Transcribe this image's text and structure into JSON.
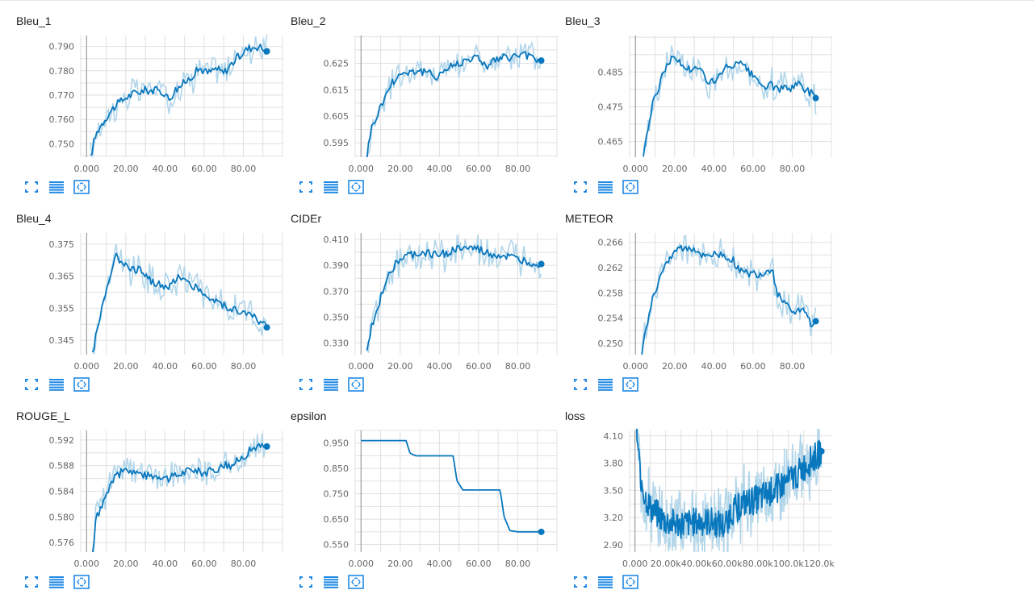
{
  "colors": {
    "line": "#0877bd",
    "line_raw": "#b3d6ea",
    "grid": "#e0e0e0",
    "axis": "#9e9e9e",
    "icon": "#1f88e5"
  },
  "icons": [
    "fullscreen-icon",
    "data-table-icon",
    "fit-domain-icon"
  ],
  "chart_data": [
    {
      "type": "line",
      "title": "Bleu_1",
      "x_tick_labels": [
        "0.000",
        "20.00",
        "40.00",
        "60.00",
        "80.00"
      ],
      "y_tick_labels": [
        "0.790",
        "0.780",
        "0.770",
        "0.760",
        "0.750"
      ],
      "xlim": [
        -3,
        100
      ],
      "ylim": [
        0.7445,
        0.7945
      ],
      "y_ticks": [
        0.79,
        0.78,
        0.77,
        0.76,
        0.75
      ],
      "x_ticks": [
        0,
        20,
        40,
        60,
        80
      ],
      "end_x": 92,
      "end_y": 0.788,
      "anchors": [
        [
          2,
          0.744
        ],
        [
          4,
          0.752
        ],
        [
          6,
          0.756
        ],
        [
          10,
          0.761
        ],
        [
          14,
          0.765
        ],
        [
          20,
          0.769
        ],
        [
          25,
          0.771
        ],
        [
          30,
          0.772
        ],
        [
          35,
          0.772
        ],
        [
          40,
          0.771
        ],
        [
          42,
          0.768
        ],
        [
          45,
          0.772
        ],
        [
          50,
          0.775
        ],
        [
          55,
          0.779
        ],
        [
          58,
          0.781
        ],
        [
          62,
          0.779
        ],
        [
          66,
          0.781
        ],
        [
          70,
          0.779
        ],
        [
          74,
          0.783
        ],
        [
          78,
          0.786
        ],
        [
          82,
          0.789
        ],
        [
          86,
          0.79
        ],
        [
          88,
          0.79
        ],
        [
          92,
          0.788
        ]
      ]
    },
    {
      "type": "line",
      "title": "Bleu_2",
      "x_tick_labels": [
        "0.000",
        "20.00",
        "40.00",
        "60.00",
        "80.00"
      ],
      "y_tick_labels": [
        "0.625",
        "0.615",
        "0.605",
        "0.595"
      ],
      "xlim": [
        -3,
        100
      ],
      "ylim": [
        0.5895,
        0.6355
      ],
      "y_ticks": [
        0.625,
        0.615,
        0.605,
        0.595
      ],
      "x_ticks": [
        0,
        20,
        40,
        60,
        80
      ],
      "end_x": 92,
      "end_y": 0.626,
      "anchors": [
        [
          3,
          0.59
        ],
        [
          5,
          0.6
        ],
        [
          8,
          0.605
        ],
        [
          12,
          0.612
        ],
        [
          16,
          0.618
        ],
        [
          20,
          0.621
        ],
        [
          25,
          0.622
        ],
        [
          30,
          0.622
        ],
        [
          35,
          0.621
        ],
        [
          38,
          0.62
        ],
        [
          42,
          0.622
        ],
        [
          46,
          0.624
        ],
        [
          50,
          0.625
        ],
        [
          55,
          0.627
        ],
        [
          60,
          0.627
        ],
        [
          64,
          0.624
        ],
        [
          68,
          0.626
        ],
        [
          72,
          0.627
        ],
        [
          76,
          0.627
        ],
        [
          80,
          0.628
        ],
        [
          84,
          0.628
        ],
        [
          88,
          0.627
        ],
        [
          92,
          0.626
        ]
      ]
    },
    {
      "type": "line",
      "title": "Bleu_3",
      "x_tick_labels": [
        "0.000",
        "20.00",
        "40.00",
        "60.00",
        "80.00"
      ],
      "y_tick_labels": [
        "0.485",
        "0.475",
        "0.465"
      ],
      "xlim": [
        -3,
        100
      ],
      "ylim": [
        0.4605,
        0.4955
      ],
      "y_ticks": [
        0.485,
        0.475,
        0.465
      ],
      "x_ticks": [
        0,
        20,
        40,
        60,
        80
      ],
      "end_x": 92,
      "end_y": 0.4775,
      "anchors": [
        [
          4,
          0.461
        ],
        [
          6,
          0.468
        ],
        [
          9,
          0.476
        ],
        [
          12,
          0.481
        ],
        [
          15,
          0.486
        ],
        [
          18,
          0.489
        ],
        [
          22,
          0.488
        ],
        [
          26,
          0.486
        ],
        [
          30,
          0.486
        ],
        [
          34,
          0.485
        ],
        [
          38,
          0.482
        ],
        [
          42,
          0.483
        ],
        [
          46,
          0.486
        ],
        [
          50,
          0.487
        ],
        [
          54,
          0.487
        ],
        [
          58,
          0.485
        ],
        [
          62,
          0.482
        ],
        [
          66,
          0.481
        ],
        [
          70,
          0.481
        ],
        [
          74,
          0.48
        ],
        [
          78,
          0.48
        ],
        [
          82,
          0.482
        ],
        [
          86,
          0.48
        ],
        [
          90,
          0.479
        ],
        [
          92,
          0.4775
        ]
      ]
    },
    {
      "type": "line",
      "title": "Bleu_4",
      "x_tick_labels": [
        "0.000",
        "20.00",
        "40.00",
        "60.00",
        "80.00"
      ],
      "y_tick_labels": [
        "0.375",
        "0.365",
        "0.355",
        "0.345"
      ],
      "xlim": [
        -3,
        100
      ],
      "ylim": [
        0.3405,
        0.3785
      ],
      "y_ticks": [
        0.375,
        0.365,
        0.355,
        0.345
      ],
      "x_ticks": [
        0,
        20,
        40,
        60,
        80
      ],
      "end_x": 92,
      "end_y": 0.349,
      "anchors": [
        [
          3,
          0.341
        ],
        [
          6,
          0.35
        ],
        [
          9,
          0.358
        ],
        [
          12,
          0.366
        ],
        [
          15,
          0.371
        ],
        [
          18,
          0.37
        ],
        [
          22,
          0.368
        ],
        [
          26,
          0.367
        ],
        [
          30,
          0.366
        ],
        [
          34,
          0.363
        ],
        [
          38,
          0.362
        ],
        [
          42,
          0.361
        ],
        [
          46,
          0.365
        ],
        [
          50,
          0.364
        ],
        [
          54,
          0.362
        ],
        [
          58,
          0.361
        ],
        [
          62,
          0.358
        ],
        [
          66,
          0.357
        ],
        [
          70,
          0.356
        ],
        [
          74,
          0.355
        ],
        [
          78,
          0.354
        ],
        [
          82,
          0.353
        ],
        [
          86,
          0.352
        ],
        [
          90,
          0.35
        ],
        [
          92,
          0.349
        ]
      ]
    },
    {
      "type": "line",
      "title": "CIDEr",
      "x_tick_labels": [
        "0.000",
        "20.00",
        "40.00",
        "60.00",
        "80.00"
      ],
      "y_tick_labels": [
        "0.410",
        "0.390",
        "0.370",
        "0.350",
        "0.330"
      ],
      "xlim": [
        -3,
        100
      ],
      "ylim": [
        0.321,
        0.415
      ],
      "y_ticks": [
        0.41,
        0.39,
        0.37,
        0.35,
        0.33
      ],
      "x_ticks": [
        0,
        20,
        40,
        60,
        80
      ],
      "end_x": 92,
      "end_y": 0.391,
      "anchors": [
        [
          3,
          0.322
        ],
        [
          5,
          0.34
        ],
        [
          8,
          0.355
        ],
        [
          11,
          0.37
        ],
        [
          14,
          0.384
        ],
        [
          18,
          0.392
        ],
        [
          22,
          0.396
        ],
        [
          26,
          0.398
        ],
        [
          30,
          0.399
        ],
        [
          35,
          0.399
        ],
        [
          40,
          0.398
        ],
        [
          45,
          0.4
        ],
        [
          50,
          0.403
        ],
        [
          55,
          0.403
        ],
        [
          60,
          0.402
        ],
        [
          64,
          0.399
        ],
        [
          68,
          0.398
        ],
        [
          72,
          0.397
        ],
        [
          76,
          0.396
        ],
        [
          80,
          0.394
        ],
        [
          84,
          0.393
        ],
        [
          88,
          0.392
        ],
        [
          92,
          0.391
        ]
      ]
    },
    {
      "type": "line",
      "title": "METEOR",
      "x_tick_labels": [
        "0.000",
        "20.00",
        "40.00",
        "60.00",
        "80.00"
      ],
      "y_tick_labels": [
        "0.266",
        "0.262",
        "0.258",
        "0.254",
        "0.250"
      ],
      "xlim": [
        -3,
        100
      ],
      "ylim": [
        0.2482,
        0.2675
      ],
      "y_ticks": [
        0.266,
        0.262,
        0.258,
        0.254,
        0.25
      ],
      "x_ticks": [
        0,
        20,
        40,
        60,
        80
      ],
      "end_x": 92,
      "end_y": 0.2535,
      "anchors": [
        [
          3,
          0.2482
        ],
        [
          5,
          0.252
        ],
        [
          8,
          0.256
        ],
        [
          11,
          0.259
        ],
        [
          14,
          0.262
        ],
        [
          18,
          0.264
        ],
        [
          22,
          0.265
        ],
        [
          26,
          0.265
        ],
        [
          30,
          0.265
        ],
        [
          35,
          0.264
        ],
        [
          40,
          0.264
        ],
        [
          45,
          0.264
        ],
        [
          50,
          0.263
        ],
        [
          55,
          0.261
        ],
        [
          60,
          0.261
        ],
        [
          65,
          0.261
        ],
        [
          70,
          0.262
        ],
        [
          72,
          0.258
        ],
        [
          75,
          0.257
        ],
        [
          78,
          0.256
        ],
        [
          82,
          0.255
        ],
        [
          86,
          0.255
        ],
        [
          90,
          0.253
        ],
        [
          92,
          0.2535
        ]
      ]
    },
    {
      "type": "line",
      "title": "ROUGE_L",
      "x_tick_labels": [
        "0.000",
        "20.00",
        "40.00",
        "60.00",
        "80.00"
      ],
      "y_tick_labels": [
        "0.592",
        "0.588",
        "0.584",
        "0.580",
        "0.576"
      ],
      "xlim": [
        -3,
        100
      ],
      "ylim": [
        0.5745,
        0.5935
      ],
      "y_ticks": [
        0.592,
        0.588,
        0.584,
        0.58,
        0.576
      ],
      "x_ticks": [
        0,
        20,
        40,
        60,
        80
      ],
      "end_x": 92,
      "end_y": 0.591,
      "anchors": [
        [
          3,
          0.5745
        ],
        [
          5,
          0.58
        ],
        [
          8,
          0.582
        ],
        [
          11,
          0.584
        ],
        [
          14,
          0.586
        ],
        [
          18,
          0.587
        ],
        [
          22,
          0.5875
        ],
        [
          26,
          0.587
        ],
        [
          30,
          0.5865
        ],
        [
          34,
          0.5865
        ],
        [
          38,
          0.5865
        ],
        [
          42,
          0.586
        ],
        [
          46,
          0.5865
        ],
        [
          50,
          0.587
        ],
        [
          54,
          0.5875
        ],
        [
          58,
          0.587
        ],
        [
          62,
          0.587
        ],
        [
          66,
          0.5875
        ],
        [
          70,
          0.588
        ],
        [
          74,
          0.588
        ],
        [
          78,
          0.589
        ],
        [
          82,
          0.59
        ],
        [
          86,
          0.591
        ],
        [
          90,
          0.591
        ],
        [
          92,
          0.591
        ]
      ]
    },
    {
      "type": "line",
      "title": "epsilon",
      "x_tick_labels": [
        "0.000",
        "20.00",
        "40.00",
        "60.00",
        "80.00"
      ],
      "y_tick_labels": [
        "0.950",
        "0.850",
        "0.750",
        "0.650",
        "0.550"
      ],
      "xlim": [
        -3,
        100
      ],
      "ylim": [
        0.52,
        1.0
      ],
      "y_ticks": [
        0.95,
        0.85,
        0.75,
        0.65,
        0.55
      ],
      "x_ticks": [
        0,
        20,
        40,
        60,
        80
      ],
      "end_x": 92,
      "end_y": 0.6,
      "anchors": [
        [
          0,
          0.96
        ],
        [
          23,
          0.96
        ],
        [
          25,
          0.91
        ],
        [
          28,
          0.9
        ],
        [
          47,
          0.9
        ],
        [
          49,
          0.8
        ],
        [
          52,
          0.765
        ],
        [
          71,
          0.765
        ],
        [
          73,
          0.66
        ],
        [
          76,
          0.605
        ],
        [
          80,
          0.6
        ],
        [
          92,
          0.6
        ]
      ]
    },
    {
      "type": "line",
      "title": "loss",
      "x_tick_labels": [
        "0.000",
        "20.00k",
        "40.00k",
        "60.00k",
        "80.00k",
        "100.0k",
        "120.0k"
      ],
      "y_tick_labels": [
        "4.10",
        "3.80",
        "3.50",
        "3.20",
        "2.90"
      ],
      "xlim": [
        -3500,
        128000
      ],
      "ylim": [
        2.82,
        4.16
      ],
      "y_ticks": [
        4.1,
        3.8,
        3.5,
        3.2,
        2.9
      ],
      "x_ticks": [
        0,
        20000,
        40000,
        60000,
        80000,
        100000,
        120000
      ],
      "end_x": 121500,
      "end_y": 3.93,
      "anchors": [
        [
          1000,
          4.15
        ],
        [
          3000,
          3.75
        ],
        [
          6000,
          3.45
        ],
        [
          10000,
          3.3
        ],
        [
          20000,
          3.15
        ],
        [
          30000,
          3.12
        ],
        [
          40000,
          3.15
        ],
        [
          50000,
          3.15
        ],
        [
          58000,
          3.1
        ],
        [
          62000,
          3.25
        ],
        [
          70000,
          3.35
        ],
        [
          80000,
          3.4
        ],
        [
          90000,
          3.5
        ],
        [
          100000,
          3.6
        ],
        [
          110000,
          3.75
        ],
        [
          121500,
          3.93
        ]
      ]
    }
  ]
}
